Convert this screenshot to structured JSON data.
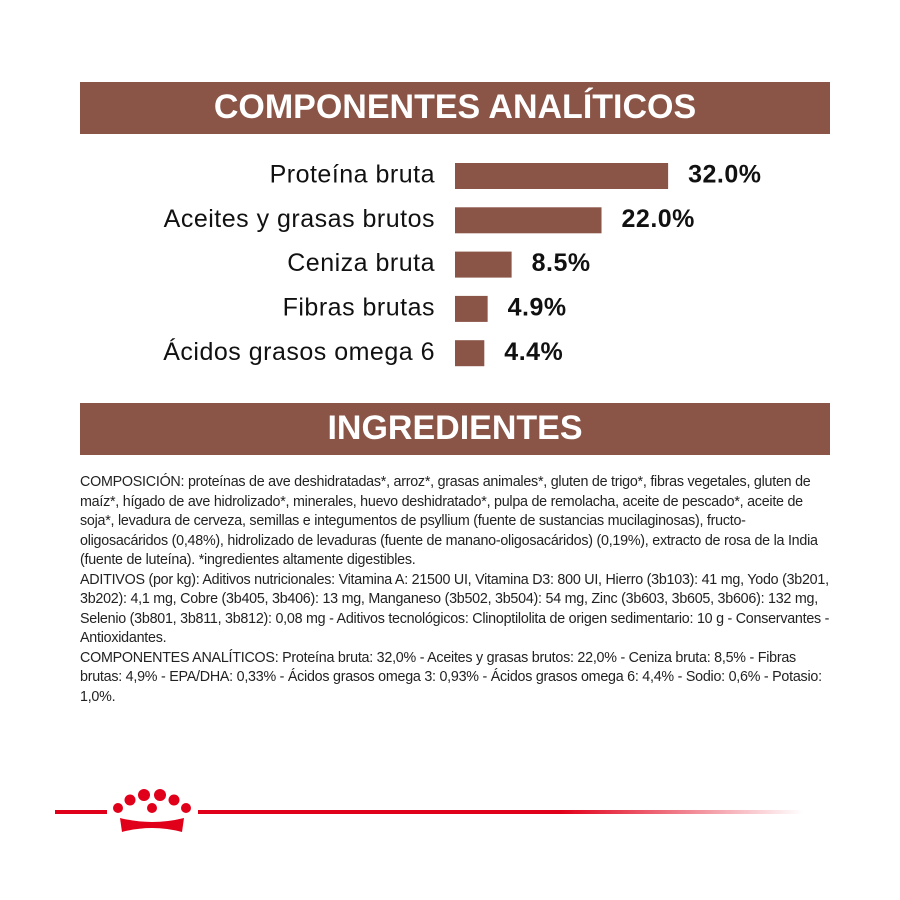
{
  "chart_data": {
    "type": "hbar",
    "title": "COMPONENTES ANALÍTICOS",
    "categories": [
      "Proteína bruta",
      "Aceites y grasas brutos",
      "Ceniza bruta",
      "Fibras brutas",
      "Ácidos grasos omega 6"
    ],
    "values": [
      32.0,
      22.0,
      8.5,
      4.9,
      4.4
    ],
    "value_labels": [
      "32.0%",
      "22.0%",
      "8.5%",
      "4.9%",
      "4.4%"
    ],
    "color": "#8a5446"
  },
  "ingredients": {
    "title": "INGREDIENTES",
    "paragraphs": [
      "COMPOSICIÓN: proteínas de ave deshidratadas*, arroz*, grasas animales*, gluten de trigo*, fibras vegetales, gluten de maíz*, hígado de ave hidrolizado*, minerales, huevo deshidratado*, pulpa de remolacha, aceite de pescado*, aceite de soja*, levadura de cerveza, semillas e integumentos de psyllium (fuente de sustancias mucilaginosas), fructo-oligosacáridos (0,48%), hidrolizado de levaduras (fuente de manano-oligosacáridos) (0,19%), extracto de rosa de la India (fuente de luteína). *ingredientes altamente digestibles.",
      "ADITIVOS (por kg): Aditivos nutricionales: Vitamina A: 21500 UI, Vitamina D3: 800 UI, Hierro (3b103): 41 mg, Yodo (3b201, 3b202): 4,1 mg, Cobre (3b405, 3b406): 13 mg, Manganeso (3b502, 3b504): 54 mg, Zinc (3b603, 3b605, 3b606): 132 mg, Selenio (3b801, 3b811, 3b812): 0,08 mg - Aditivos tecnológicos: Clinoptilolita de origen sedimentario: 10 g - Conservantes - Antioxidantes.",
      "COMPONENTES ANALÍTICOS: Proteína bruta: 32,0% - Aceites y grasas brutos: 22,0% - Ceniza bruta: 8,5% - Fibras brutas: 4,9% - EPA/DHA: 0,33% - Ácidos grasos omega 3: 0,93% - Ácidos grasos omega 6: 4,4% - Sodio: 0,6% - Potasio: 1,0%."
    ]
  }
}
